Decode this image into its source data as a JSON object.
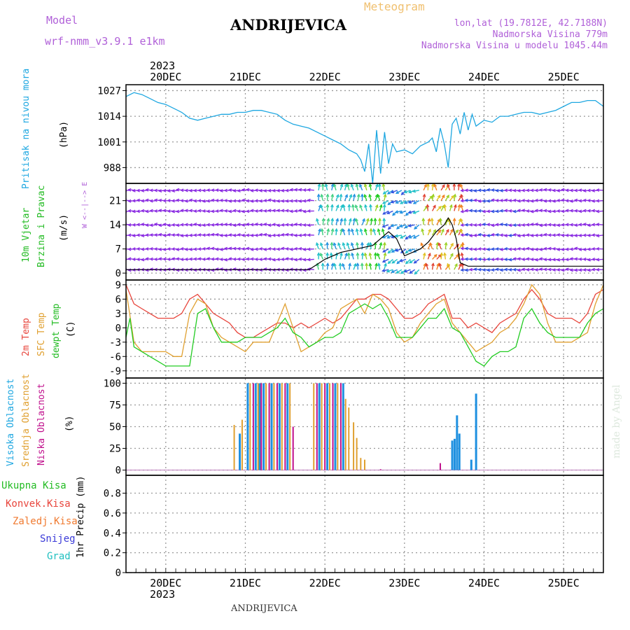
{
  "header": {
    "model_label": "Model",
    "model_name": "wrf-nmm_v3.9.1 e1km",
    "station": "ANDRIJEVICA",
    "meteogram_label": "Meteogram",
    "lonlat": "lon,lat (19.7812E, 42.7188N)",
    "elevation": "Nadmorska Visina 779m",
    "model_elevation": "Nadmorska Visina u modelu 1045.44m",
    "footer_station": "ANDRIJEVICA",
    "watermark": "made by Angel",
    "year_top": "2023",
    "year_bottom": "2023",
    "compass": "W <--|--> E"
  },
  "colors": {
    "pressure": "#1ea7e1",
    "temp2m": "#e8453c",
    "sfc": "#e0a030",
    "dewpt": "#22cc22",
    "high_cloud": "#1e90e0",
    "mid_cloud": "#e0a030",
    "low_cloud": "#c0108c",
    "gust": "#000000",
    "wind_calm": "#8a2be2"
  },
  "axis_titles": {
    "pressure": [
      "Pritisak na nivou mora",
      "(hPa)"
    ],
    "wind": [
      "10m Vjetar",
      "Brzina i Pravac",
      "(m/s)"
    ],
    "temp": [
      "2m Temp",
      "SFC Temp",
      "dewpt Temp",
      "(C)"
    ],
    "cloud": [
      "Visoka Oblacnost",
      "Srednja Oblacnost",
      "Niska Oblacnost",
      "(%)"
    ],
    "precip_axis": "1hr Precip (mm)",
    "precip_legend": [
      "Ukupna Kisa",
      "Konvek.Kisa",
      "Zaledj.Kisa",
      "Snijeg",
      "Grad"
    ]
  },
  "chart_data": [
    {
      "type": "line",
      "name": "pressure",
      "x_ticks": [
        "20DEC",
        "21DEC",
        "22DEC",
        "23DEC",
        "24DEC",
        "25DEC"
      ],
      "ylabel": "(hPa)",
      "yticks": [
        988,
        1001,
        1014,
        1027
      ],
      "ylim": [
        980,
        1030
      ],
      "xlim": [
        -0.5,
        5.5
      ],
      "grid": true,
      "series": [
        {
          "x": [
            -0.5,
            -0.4,
            -0.3,
            -0.2,
            -0.1,
            0,
            0.1,
            0.2,
            0.3,
            0.4,
            0.5,
            0.6,
            0.7,
            0.8,
            0.9,
            1.0,
            1.1,
            1.2,
            1.3,
            1.4,
            1.5,
            1.6,
            1.7,
            1.8,
            1.9,
            2.0,
            2.1,
            2.2,
            2.3,
            2.4,
            2.45,
            2.5,
            2.55,
            2.6,
            2.65,
            2.7,
            2.75,
            2.8,
            2.85,
            2.9,
            3.0,
            3.1,
            3.2,
            3.3,
            3.35,
            3.4,
            3.45,
            3.5,
            3.55,
            3.6,
            3.65,
            3.7,
            3.75,
            3.8,
            3.85,
            3.9,
            4.0,
            4.1,
            4.2,
            4.3,
            4.4,
            4.5,
            4.6,
            4.7,
            4.8,
            4.9,
            5.0,
            5.1,
            5.2,
            5.3,
            5.4,
            5.5
          ],
          "values": [
            1024,
            1026,
            1025,
            1023,
            1021,
            1020,
            1018,
            1016,
            1013,
            1012,
            1013,
            1014,
            1015,
            1015,
            1016,
            1016,
            1017,
            1017,
            1016,
            1015,
            1012,
            1010,
            1009,
            1008,
            1006,
            1004,
            1002,
            1000,
            997,
            995,
            992,
            986,
            1000,
            980,
            1007,
            985,
            1006,
            990,
            1000,
            996,
            997,
            995,
            999,
            1001,
            1003,
            996,
            1008,
            1000,
            988,
            1010,
            1013,
            1005,
            1016,
            1007,
            1015,
            1009,
            1012,
            1011,
            1014,
            1014,
            1015,
            1016,
            1016,
            1015,
            1016,
            1017,
            1019,
            1021,
            1021,
            1022,
            1022,
            1019
          ]
        }
      ]
    },
    {
      "type": "line",
      "name": "wind",
      "ylabel": "(m/s)",
      "yticks": [
        0,
        7,
        14,
        21
      ],
      "ylim": [
        -2,
        26
      ],
      "xlim": [
        -0.5,
        5.5
      ],
      "grid": true,
      "series": [
        {
          "name": "gust",
          "x": [
            -0.5,
            0,
            0.5,
            1.0,
            1.5,
            1.8,
            2.0,
            2.2,
            2.4,
            2.6,
            2.8,
            2.9,
            3.0,
            3.1,
            3.2,
            3.3,
            3.4,
            3.5,
            3.55,
            3.6,
            3.65,
            3.7,
            3.8,
            4.0,
            4.5,
            5.0,
            5.5
          ],
          "values": [
            1,
            1,
            1,
            1,
            1,
            1,
            4,
            6,
            7,
            8,
            12,
            10,
            5,
            6,
            7,
            9,
            12,
            14,
            16,
            14,
            10,
            3,
            2,
            2,
            2,
            2,
            2
          ]
        }
      ]
    },
    {
      "type": "line",
      "name": "temperature",
      "ylabel": "(C)",
      "yticks": [
        -9,
        -6,
        -3,
        0,
        3,
        6,
        9
      ],
      "ylim": [
        -10.5,
        10
      ],
      "xlim": [
        -0.5,
        5.5
      ],
      "grid": true,
      "series": [
        {
          "name": "2m Temp",
          "x": [
            -0.5,
            -0.4,
            -0.3,
            -0.2,
            -0.1,
            0,
            0.1,
            0.2,
            0.3,
            0.4,
            0.5,
            0.6,
            0.7,
            0.8,
            0.9,
            1.0,
            1.1,
            1.2,
            1.3,
            1.4,
            1.5,
            1.6,
            1.7,
            1.8,
            1.9,
            2.0,
            2.1,
            2.2,
            2.3,
            2.4,
            2.5,
            2.6,
            2.7,
            2.8,
            2.9,
            3.0,
            3.1,
            3.2,
            3.3,
            3.4,
            3.5,
            3.6,
            3.7,
            3.8,
            3.9,
            4.0,
            4.1,
            4.2,
            4.3,
            4.4,
            4.5,
            4.6,
            4.7,
            4.8,
            4.9,
            5.0,
            5.1,
            5.2,
            5.3,
            5.4,
            5.5
          ],
          "values": [
            9,
            5,
            4,
            3,
            2,
            2,
            2,
            3,
            6,
            7,
            5,
            3,
            2,
            1,
            -1,
            -2,
            -2,
            -1,
            0,
            1,
            1,
            0,
            1,
            0,
            1,
            2,
            1,
            2,
            4,
            6,
            6,
            7,
            7,
            6,
            4,
            2,
            2,
            3,
            5,
            6,
            7,
            2,
            2,
            0,
            1,
            0,
            -1,
            1,
            2,
            3,
            6,
            8,
            6,
            3,
            2,
            2,
            2,
            1,
            3,
            7,
            8
          ]
        },
        {
          "name": "SFC Temp",
          "x": [
            -0.5,
            -0.4,
            -0.3,
            -0.2,
            -0.1,
            0,
            0.1,
            0.2,
            0.3,
            0.4,
            0.5,
            0.6,
            0.7,
            0.8,
            0.9,
            1.0,
            1.1,
            1.2,
            1.3,
            1.4,
            1.5,
            1.6,
            1.7,
            1.8,
            1.9,
            2.0,
            2.1,
            2.2,
            2.3,
            2.4,
            2.5,
            2.6,
            2.7,
            2.8,
            2.9,
            3.0,
            3.1,
            3.2,
            3.3,
            3.4,
            3.5,
            3.6,
            3.7,
            3.8,
            3.9,
            4.0,
            4.1,
            4.2,
            4.3,
            4.4,
            4.5,
            4.6,
            4.7,
            4.8,
            4.9,
            5.0,
            5.1,
            5.2,
            5.3,
            5.4,
            5.5
          ],
          "values": [
            8,
            -3,
            -5,
            -5,
            -5,
            -5,
            -6,
            -6,
            3,
            6,
            5,
            0,
            -2,
            -3,
            -4,
            -5,
            -3,
            -3,
            -3,
            1,
            5,
            0,
            -5,
            -4,
            -3,
            -1,
            0,
            4,
            5,
            6,
            3,
            7,
            6,
            4,
            -1,
            -3,
            -2,
            1,
            3,
            5,
            6,
            1,
            -1,
            -3,
            -5,
            -4,
            -3,
            -1,
            0,
            2,
            5,
            9,
            7,
            1,
            -3,
            -3,
            -3,
            -2,
            -1,
            5,
            9
          ]
        },
        {
          "name": "dewpt Temp",
          "x": [
            -0.5,
            -0.45,
            -0.4,
            -0.3,
            -0.2,
            -0.1,
            0,
            0.1,
            0.2,
            0.3,
            0.4,
            0.5,
            0.6,
            0.7,
            0.8,
            0.9,
            1.0,
            1.1,
            1.2,
            1.3,
            1.4,
            1.5,
            1.6,
            1.7,
            1.8,
            1.9,
            2.0,
            2.1,
            2.2,
            2.3,
            2.4,
            2.5,
            2.6,
            2.7,
            2.8,
            2.9,
            3.0,
            3.1,
            3.2,
            3.3,
            3.4,
            3.5,
            3.6,
            3.7,
            3.8,
            3.9,
            4.0,
            4.1,
            4.2,
            4.3,
            4.4,
            4.5,
            4.6,
            4.7,
            4.8,
            4.9,
            5.0,
            5.1,
            5.2,
            5.3,
            5.4,
            5.5
          ],
          "values": [
            -2,
            2,
            -4,
            -5,
            -6,
            -7,
            -8,
            -8,
            -8,
            -8,
            3,
            4,
            0,
            -3,
            -3,
            -3,
            -2,
            -2,
            -2,
            -1,
            0,
            2,
            -1,
            -2,
            -4,
            -3,
            -2,
            -2,
            -1,
            3,
            4,
            5,
            4,
            5,
            2,
            -2,
            -2,
            -2,
            0,
            2,
            2,
            4,
            0,
            -1,
            -4,
            -7,
            -8,
            -6,
            -5,
            -5,
            -4,
            2,
            4,
            1,
            -1,
            -2,
            -2,
            -2,
            -2,
            1,
            3,
            4
          ]
        }
      ]
    },
    {
      "type": "bar",
      "name": "cloud cover",
      "ylabel": "(%)",
      "yticks": [
        0,
        25,
        50,
        75,
        100
      ],
      "ylim": [
        -6,
        106
      ],
      "xlim": [
        -0.5,
        5.5
      ],
      "grid": true,
      "series": [
        {
          "name": "Visoka Oblacnost",
          "x": [
            0.93,
            1.03,
            1.13,
            1.18,
            1.23,
            1.33,
            1.43,
            1.53,
            1.93,
            2.03,
            2.13,
            2.23,
            3.6,
            3.63,
            3.66,
            3.69,
            3.73,
            3.84,
            3.9
          ],
          "values": [
            42,
            100,
            100,
            100,
            100,
            100,
            100,
            100,
            100,
            100,
            100,
            100,
            34,
            36,
            63,
            42,
            0,
            12,
            88
          ]
        },
        {
          "name": "Srednja Oblacnost",
          "x": [
            0.86,
            0.96,
            1.06,
            1.16,
            1.26,
            1.36,
            1.46,
            1.56,
            1.86,
            1.96,
            2.06,
            2.16,
            2.26,
            2.3,
            2.36,
            2.4,
            2.45,
            2.5
          ],
          "values": [
            52,
            58,
            100,
            100,
            100,
            100,
            100,
            100,
            100,
            100,
            100,
            100,
            82,
            72,
            55,
            37,
            14,
            12
          ]
        },
        {
          "name": "Niska Oblacnost",
          "x": [
            1.1,
            1.2,
            1.3,
            1.4,
            1.5,
            1.6,
            1.9,
            2.0,
            2.1,
            2.2,
            2.7,
            3.45
          ],
          "values": [
            100,
            100,
            100,
            100,
            100,
            50,
            100,
            100,
            100,
            100,
            1,
            8
          ]
        }
      ]
    },
    {
      "type": "bar",
      "name": "precipitation",
      "ylabel": "1hr Precip (mm)",
      "yticks": [
        0,
        0.2,
        0.4,
        0.6,
        0.8
      ],
      "ylim": [
        0,
        0.98
      ],
      "xlim": [
        -0.5,
        5.5
      ],
      "grid": true,
      "series": [
        {
          "name": "Ukupna Kisa",
          "x": [],
          "values": []
        }
      ]
    }
  ]
}
